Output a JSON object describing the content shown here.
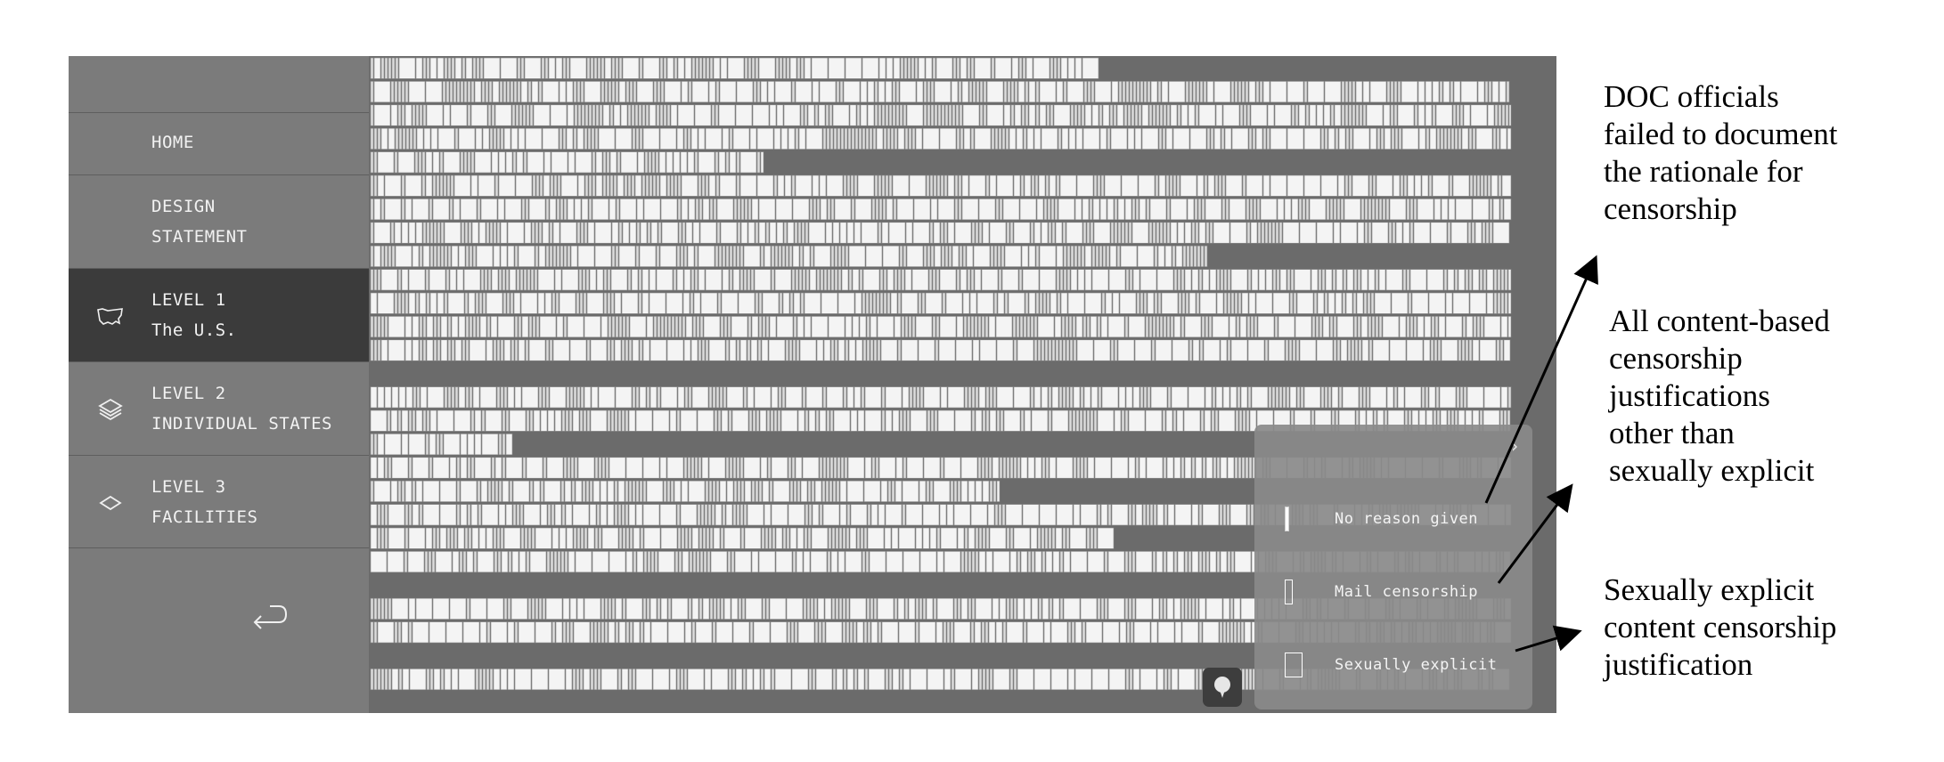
{
  "sidebar": {
    "items": [
      {
        "line1": "HOME",
        "line2": "",
        "icon": ""
      },
      {
        "line1": "DESIGN",
        "line2": "STATEMENT",
        "icon": ""
      },
      {
        "line1": "LEVEL 1",
        "line2": "The U.S.",
        "icon": "us-map-icon",
        "active": true
      },
      {
        "line1": "LEVEL 2",
        "line2": "INDIVIDUAL STATES",
        "icon": "layers-icon"
      },
      {
        "line1": "LEVEL 3",
        "line2": "FACILITIES",
        "icon": "diamond-icon"
      }
    ],
    "back_icon": "return-arrow-icon"
  },
  "legend": {
    "close_icon": "chevron-right-icon",
    "items": [
      {
        "label": "No reason given"
      },
      {
        "label": "Mail censorship"
      },
      {
        "label": "Sexually explicit"
      }
    ]
  },
  "zoom_icon": "pin-icon",
  "annotations": {
    "doc": [
      "DOC officials",
      "failed to document",
      "the rationale for",
      "censorship"
    ],
    "content": [
      "All content-based",
      "censorship",
      "justifications",
      "other than",
      "sexually explicit"
    ],
    "sexual": [
      "Sexually explicit",
      "content censorship",
      "justification"
    ]
  },
  "colors": {
    "sidebar": "#7b7b7b",
    "active": "#3b3b3b",
    "background": "#6b6b6b",
    "cell": "#f2f2f2"
  }
}
